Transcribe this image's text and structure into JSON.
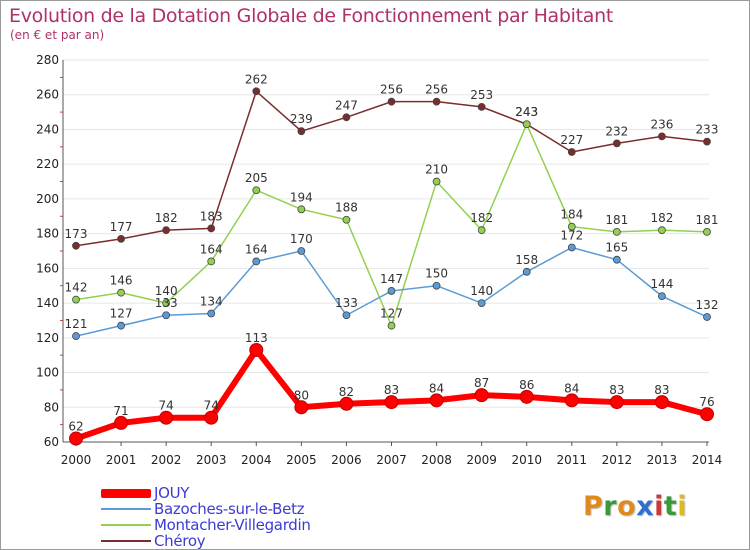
{
  "title": "Evolution de la Dotation Globale de Fonctionnement par Habitant",
  "subtitle": "(en € et par an)",
  "brand": [
    "P",
    "r",
    "o",
    "x",
    "i",
    "t",
    "i"
  ],
  "brand_colors": [
    "#e08a1e",
    "#3a9a3a",
    "#e08a1e",
    "#2f6fd0",
    "#c83a3a",
    "#3a9a3a",
    "#e0b81e"
  ],
  "colors": {
    "JOUY": "#ff0000",
    "Bazoches-sur-le-Betz": "#5b9bd5",
    "Montacher-Villegardin": "#92d050",
    "Chéroy": "#7b2c2c",
    "axis": "#555555",
    "grid": "#e6e6e6",
    "accent": "#b0306a"
  },
  "chart_data": {
    "type": "line",
    "title": "Evolution de la Dotation Globale de Fonctionnement par Habitant",
    "subtitle": "(en € et par an)",
    "xlabel": "",
    "ylabel": "",
    "x": [
      "2000",
      "2001",
      "2002",
      "2003",
      "2004",
      "2005",
      "2006",
      "2007",
      "2008",
      "2009",
      "2010",
      "2011",
      "2012",
      "2013",
      "2014"
    ],
    "ylim": [
      60,
      280
    ],
    "yticks": [
      "60",
      "80",
      "100",
      "120",
      "140",
      "160",
      "180",
      "200",
      "220",
      "240",
      "260",
      "280"
    ],
    "grid": true,
    "legend": "bottom-left",
    "series": [
      {
        "name": "JOUY",
        "values": [
          62,
          71,
          74,
          74,
          113,
          80,
          82,
          83,
          84,
          87,
          86,
          84,
          83,
          83,
          76
        ],
        "labels": [
          "62",
          "71",
          "74",
          "74",
          "113",
          "80",
          "82",
          "83",
          "84",
          "87",
          "86",
          "84",
          "83",
          "83",
          "76"
        ]
      },
      {
        "name": "Bazoches-sur-le-Betz",
        "values": [
          121,
          127,
          133,
          134,
          164,
          170,
          133,
          147,
          150,
          140,
          158,
          172,
          165,
          144,
          132
        ],
        "labels": [
          "121",
          "127",
          "133",
          "134",
          "164",
          "170",
          "133",
          "147",
          "150",
          "140",
          "158",
          "172",
          "165",
          "144",
          "132"
        ]
      },
      {
        "name": "Montacher-Villegardin",
        "values": [
          142,
          146,
          140,
          164,
          205,
          194,
          188,
          127,
          210,
          182,
          243,
          184,
          181,
          182,
          181
        ],
        "labels": [
          "142",
          "146",
          "140",
          "164",
          "205",
          "194",
          "188",
          "127",
          "210",
          "182",
          "243",
          "184",
          "181",
          "182",
          "181"
        ]
      },
      {
        "name": "Chéroy",
        "values": [
          173,
          177,
          182,
          183,
          262,
          239,
          247,
          256,
          256,
          253,
          243,
          227,
          232,
          236,
          233
        ],
        "labels": [
          "173",
          "177",
          "182",
          "183",
          "262",
          "239",
          "247",
          "256",
          "256",
          "253",
          "243",
          "227",
          "232",
          "236",
          "233"
        ]
      }
    ]
  }
}
